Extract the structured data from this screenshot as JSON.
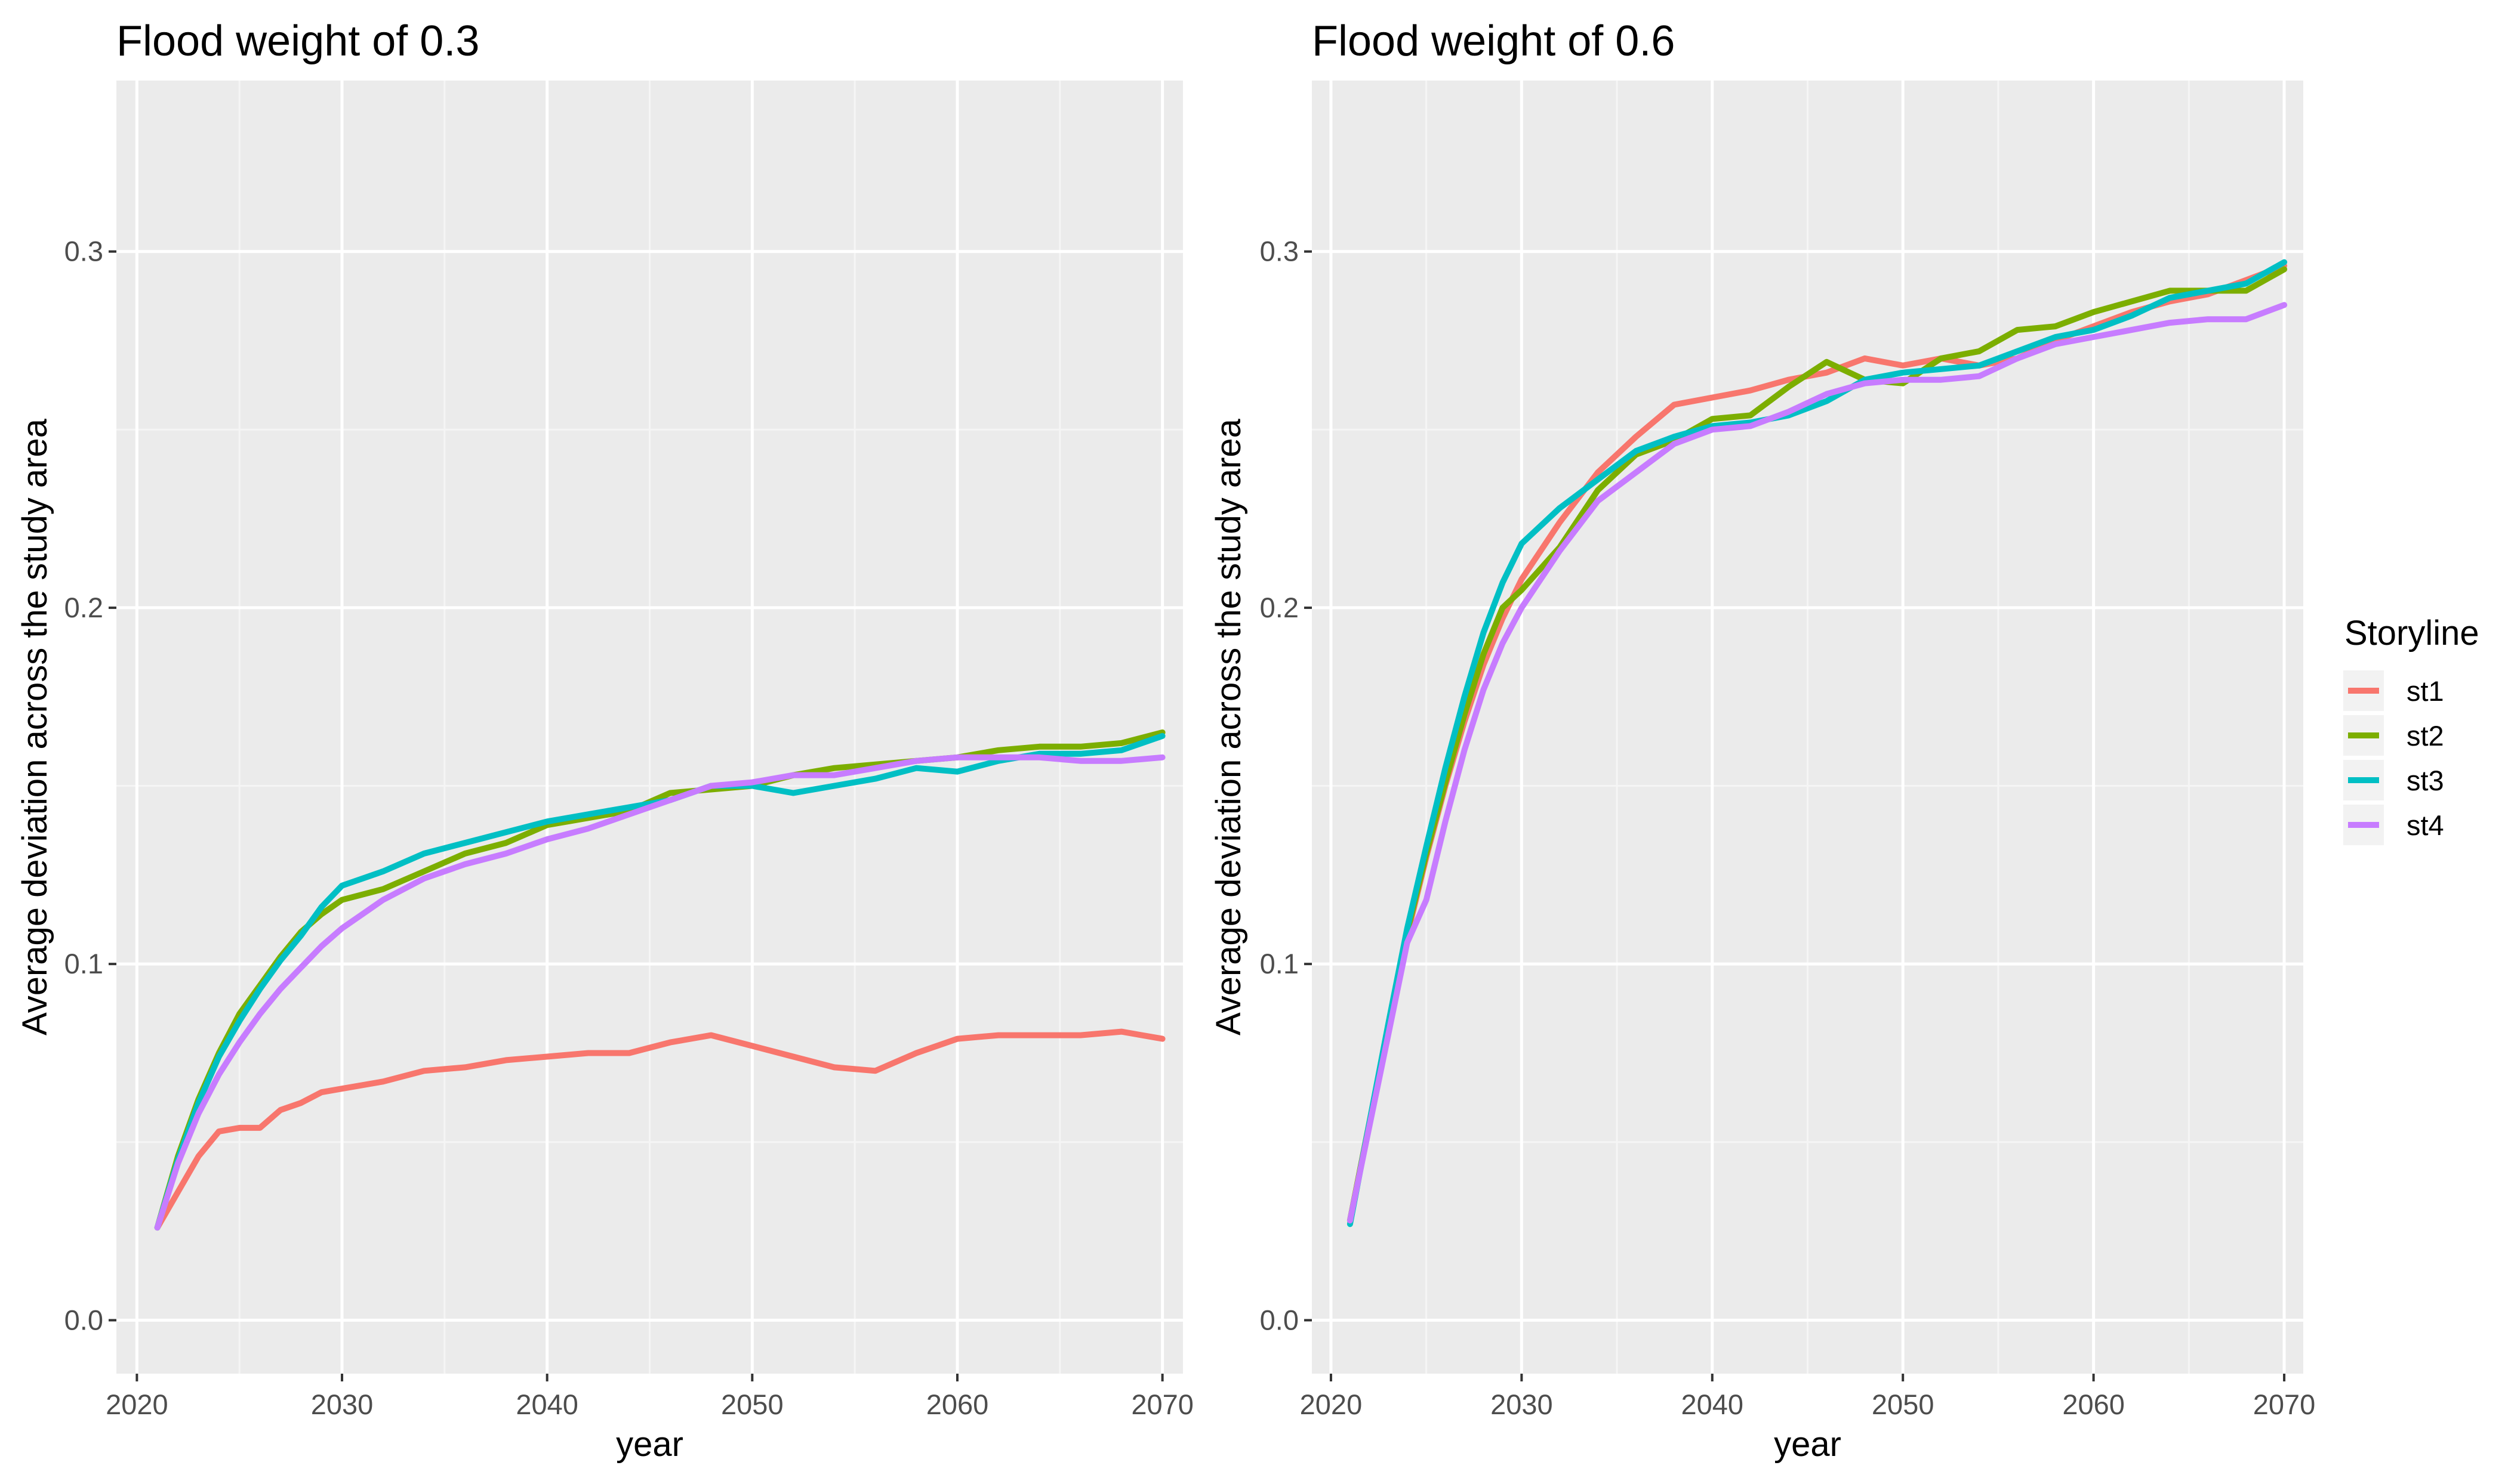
{
  "chart_data": [
    {
      "type": "line",
      "title": "Flood weight of 0.3",
      "xlabel": "year",
      "ylabel": "Average deviation across the study area",
      "xlim": [
        2019,
        2071
      ],
      "ylim": [
        -0.015,
        0.348
      ],
      "xticks": [
        "2020",
        "2030",
        "2040",
        "2050",
        "2060",
        "2070"
      ],
      "yticks": [
        "0.0",
        "0.1",
        "0.2",
        "0.3"
      ],
      "grid": true,
      "x": [
        2021,
        2022,
        2023,
        2024,
        2025,
        2026,
        2027,
        2028,
        2029,
        2030,
        2032,
        2034,
        2036,
        2038,
        2040,
        2042,
        2044,
        2046,
        2048,
        2050,
        2052,
        2054,
        2056,
        2058,
        2060,
        2062,
        2064,
        2066,
        2068,
        2070
      ],
      "series": [
        {
          "name": "st1",
          "color": "#f8766d",
          "values": [
            0.026,
            0.036,
            0.046,
            0.053,
            0.054,
            0.054,
            0.059,
            0.061,
            0.064,
            0.065,
            0.067,
            0.07,
            0.071,
            0.073,
            0.074,
            0.075,
            0.075,
            0.078,
            0.08,
            0.077,
            0.074,
            0.071,
            0.07,
            0.075,
            0.079,
            0.08,
            0.08,
            0.08,
            0.081,
            0.079
          ]
        },
        {
          "name": "st2",
          "color": "#7cae00",
          "values": [
            0.026,
            0.046,
            0.062,
            0.075,
            0.086,
            0.094,
            0.102,
            0.109,
            0.114,
            0.118,
            0.121,
            0.126,
            0.131,
            0.134,
            0.139,
            0.141,
            0.143,
            0.148,
            0.149,
            0.15,
            0.153,
            0.155,
            0.156,
            0.157,
            0.158,
            0.16,
            0.161,
            0.161,
            0.162,
            0.165
          ]
        },
        {
          "name": "st3",
          "color": "#00bfc4",
          "values": [
            0.026,
            0.045,
            0.061,
            0.074,
            0.084,
            0.093,
            0.101,
            0.108,
            0.116,
            0.122,
            0.126,
            0.131,
            0.134,
            0.137,
            0.14,
            0.142,
            0.144,
            0.146,
            0.15,
            0.15,
            0.148,
            0.15,
            0.152,
            0.155,
            0.154,
            0.157,
            0.159,
            0.159,
            0.16,
            0.164
          ]
        },
        {
          "name": "st4",
          "color": "#c77cff",
          "values": [
            0.026,
            0.044,
            0.058,
            0.069,
            0.078,
            0.086,
            0.093,
            0.099,
            0.105,
            0.11,
            0.118,
            0.124,
            0.128,
            0.131,
            0.135,
            0.138,
            0.142,
            0.146,
            0.15,
            0.151,
            0.153,
            0.153,
            0.155,
            0.157,
            0.158,
            0.158,
            0.158,
            0.157,
            0.157,
            0.158
          ]
        }
      ]
    },
    {
      "type": "line",
      "title": "Flood weight of 0.6",
      "xlabel": "year",
      "ylabel": "Average deviation across the study area",
      "xlim": [
        2019,
        2071
      ],
      "ylim": [
        -0.015,
        0.348
      ],
      "xticks": [
        "2020",
        "2030",
        "2040",
        "2050",
        "2060",
        "2070"
      ],
      "yticks": [
        "0.0",
        "0.1",
        "0.2",
        "0.3"
      ],
      "grid": true,
      "x": [
        2021,
        2022,
        2023,
        2024,
        2025,
        2026,
        2027,
        2028,
        2029,
        2030,
        2032,
        2034,
        2036,
        2038,
        2040,
        2042,
        2044,
        2046,
        2048,
        2050,
        2052,
        2054,
        2056,
        2058,
        2060,
        2062,
        2064,
        2066,
        2068,
        2070
      ],
      "series": [
        {
          "name": "st1",
          "color": "#f8766d",
          "values": [
            0.028,
            0.055,
            0.082,
            0.108,
            0.13,
            0.15,
            0.168,
            0.184,
            0.197,
            0.208,
            0.224,
            0.238,
            0.248,
            0.257,
            0.259,
            0.261,
            0.264,
            0.266,
            0.27,
            0.268,
            0.27,
            0.268,
            0.27,
            0.275,
            0.279,
            0.283,
            0.286,
            0.288,
            0.292,
            0.296
          ]
        },
        {
          "name": "st2",
          "color": "#7cae00",
          "values": [
            0.028,
            0.055,
            0.082,
            0.109,
            0.131,
            0.151,
            0.17,
            0.187,
            0.2,
            0.205,
            0.217,
            0.233,
            0.243,
            0.247,
            0.253,
            0.254,
            0.262,
            0.269,
            0.264,
            0.263,
            0.27,
            0.272,
            0.278,
            0.279,
            0.283,
            0.286,
            0.289,
            0.289,
            0.289,
            0.295
          ]
        },
        {
          "name": "st3",
          "color": "#00bfc4",
          "values": [
            0.027,
            0.055,
            0.083,
            0.11,
            0.133,
            0.155,
            0.175,
            0.193,
            0.207,
            0.218,
            0.228,
            0.236,
            0.244,
            0.248,
            0.251,
            0.252,
            0.254,
            0.258,
            0.264,
            0.266,
            0.267,
            0.268,
            0.272,
            0.276,
            0.278,
            0.282,
            0.287,
            0.289,
            0.291,
            0.297
          ]
        },
        {
          "name": "st4",
          "color": "#c77cff",
          "values": [
            0.028,
            0.054,
            0.08,
            0.106,
            0.118,
            0.14,
            0.16,
            0.177,
            0.19,
            0.2,
            0.216,
            0.23,
            0.238,
            0.246,
            0.25,
            0.251,
            0.255,
            0.26,
            0.263,
            0.264,
            0.264,
            0.265,
            0.27,
            0.274,
            0.276,
            0.278,
            0.28,
            0.281,
            0.281,
            0.285
          ]
        }
      ]
    }
  ],
  "legend": {
    "title": "Storyline",
    "items": [
      {
        "label": "st1",
        "color": "#f8766d"
      },
      {
        "label": "st2",
        "color": "#7cae00"
      },
      {
        "label": "st3",
        "color": "#00bfc4"
      },
      {
        "label": "st4",
        "color": "#c77cff"
      }
    ]
  },
  "colors": {
    "panel_background": "#ebebeb",
    "grid_major": "#ffffff",
    "grid_minor": "#f5f5f5",
    "tick_text": "#4d4d4d"
  }
}
